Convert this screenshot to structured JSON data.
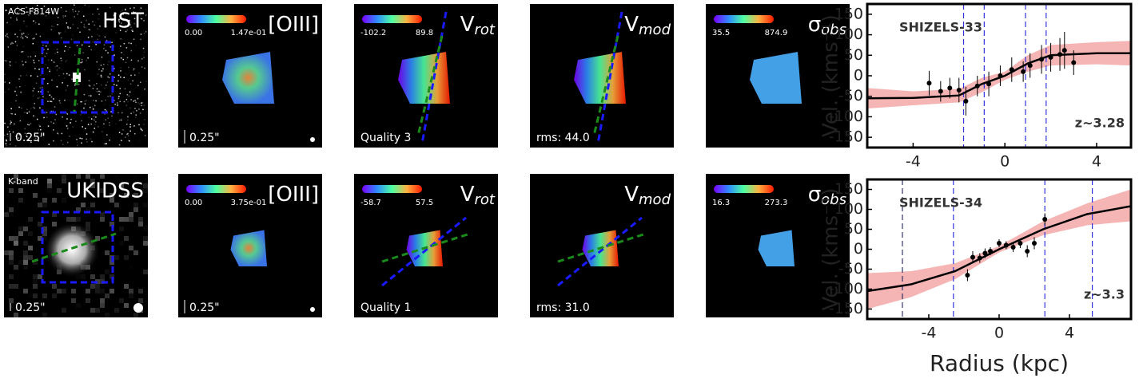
{
  "rows": [
    {
      "imaging": {
        "instrument": "ACS-F814W",
        "telescope": "HST",
        "scale": "0.25\""
      },
      "panels": [
        {
          "label": {
            "main": "[OIII]"
          },
          "cbar": [
            "0.00",
            "1.47e-01"
          ],
          "scale": "0.25\""
        },
        {
          "label": {
            "main": "V",
            "sub": "rot"
          },
          "cbar": [
            "-102.2",
            "89.8"
          ],
          "note": "Quality 3"
        },
        {
          "label": {
            "main": "V",
            "sub": "mod"
          },
          "note": "rms: 44.0"
        },
        {
          "label": {
            "main": "σ",
            "sub": "obs"
          },
          "cbar": [
            "35.5",
            "874.9"
          ]
        }
      ]
    },
    {
      "imaging": {
        "instrument": "K-band",
        "telescope": "UKIDSS",
        "scale": "0.25\""
      },
      "panels": [
        {
          "label": {
            "main": "[OIII]"
          },
          "cbar": [
            "0.00",
            "3.75e-01"
          ],
          "scale": "0.25\""
        },
        {
          "label": {
            "main": "V",
            "sub": "rot"
          },
          "cbar": [
            "-58.7",
            "57.5"
          ],
          "note": "Quality 1"
        },
        {
          "label": {
            "main": "V",
            "sub": "mod"
          },
          "note": "rms: 31.0"
        },
        {
          "label": {
            "main": "σ",
            "sub": "obs"
          },
          "cbar": [
            "16.3",
            "273.3"
          ]
        }
      ]
    }
  ],
  "chart_data": [
    {
      "type": "line",
      "title": "SHIZELS-33",
      "annotation": "z~3.28",
      "ylabel": "Vel. (kms⁻¹)",
      "xlim": [
        -6,
        5.5
      ],
      "xticks": [
        -4,
        0,
        4
      ],
      "ylim": [
        -175,
        175
      ],
      "yticks": [
        -150,
        -100,
        -50,
        0,
        50,
        100,
        150
      ],
      "points": {
        "x": [
          -3.3,
          -2.8,
          -2.4,
          -2,
          -1.7,
          -1.2,
          -0.7,
          -0.2,
          0.3,
          0.8,
          1.1,
          1.6,
          2,
          2.4,
          2.6,
          3
        ],
        "values": [
          -18,
          -38,
          -30,
          -35,
          -62,
          -25,
          -20,
          0,
          15,
          10,
          25,
          40,
          45,
          52,
          62,
          32
        ],
        "errors": [
          30,
          25,
          25,
          30,
          35,
          25,
          30,
          25,
          30,
          25,
          30,
          35,
          35,
          40,
          45,
          30
        ],
        "color": "#000000"
      },
      "model": {
        "x": [
          -6,
          -4,
          -2,
          -1,
          0,
          1,
          2,
          4,
          5.5
        ],
        "values": [
          -55,
          -54,
          -48,
          -20,
          0,
          30,
          50,
          55,
          55
        ],
        "color": "#000000"
      },
      "band": {
        "x": [
          -6,
          -4,
          -2,
          -1,
          0,
          1,
          2,
          4,
          5.5
        ],
        "lower": [
          -80,
          -72,
          -65,
          -40,
          -10,
          10,
          25,
          28,
          25
        ],
        "upper": [
          -30,
          -38,
          -32,
          -5,
          10,
          50,
          75,
          82,
          85
        ],
        "color": "#f4a3a3"
      },
      "vlines": [
        {
          "value": -1.8,
          "color": "#3333dd"
        },
        {
          "value": -0.9,
          "color": "#3333dd"
        },
        {
          "value": 0.9,
          "color": "#3333dd"
        },
        {
          "value": 1.8,
          "color": "#3333dd"
        }
      ]
    },
    {
      "type": "line",
      "title": "SHIZELS-34",
      "annotation": "z~3.3",
      "ylabel": "Vel. (kms⁻¹)",
      "xlabel": "Radius (kpc)",
      "xlim": [
        -7.5,
        7.5
      ],
      "xticks": [
        -4,
        0,
        4
      ],
      "ylim": [
        -175,
        175
      ],
      "yticks": [
        -150,
        -100,
        -50,
        0,
        50,
        100,
        150
      ],
      "points": {
        "x": [
          -1.8,
          -1.5,
          -1.1,
          -0.8,
          -0.5,
          0,
          0.4,
          0.8,
          1.2,
          1.6,
          2,
          2.6
        ],
        "values": [
          -65,
          -20,
          -22,
          -10,
          -5,
          15,
          10,
          5,
          15,
          -5,
          15,
          75
        ],
        "errors": [
          15,
          15,
          12,
          12,
          10,
          10,
          10,
          12,
          12,
          15,
          15,
          15
        ],
        "color": "#000000"
      },
      "model": {
        "x": [
          -7.5,
          -5,
          -2.5,
          0,
          2.5,
          5,
          7.5
        ],
        "values": [
          -105,
          -88,
          -55,
          0,
          50,
          88,
          108
        ],
        "color": "#000000"
      },
      "band": {
        "x": [
          -7.5,
          -5,
          -2.5,
          0,
          2.5,
          5,
          7.5
        ],
        "lower": [
          -150,
          -120,
          -75,
          -8,
          35,
          60,
          70
        ],
        "upper": [
          -60,
          -55,
          -35,
          8,
          70,
          115,
          150
        ],
        "color": "#f4a3a3"
      },
      "vlines": [
        {
          "value": -5.5,
          "color": "#333366"
        },
        {
          "value": -2.6,
          "color": "#3333dd"
        },
        {
          "value": 2.6,
          "color": "#3333dd"
        },
        {
          "value": 5.3,
          "color": "#3333dd"
        }
      ]
    }
  ]
}
